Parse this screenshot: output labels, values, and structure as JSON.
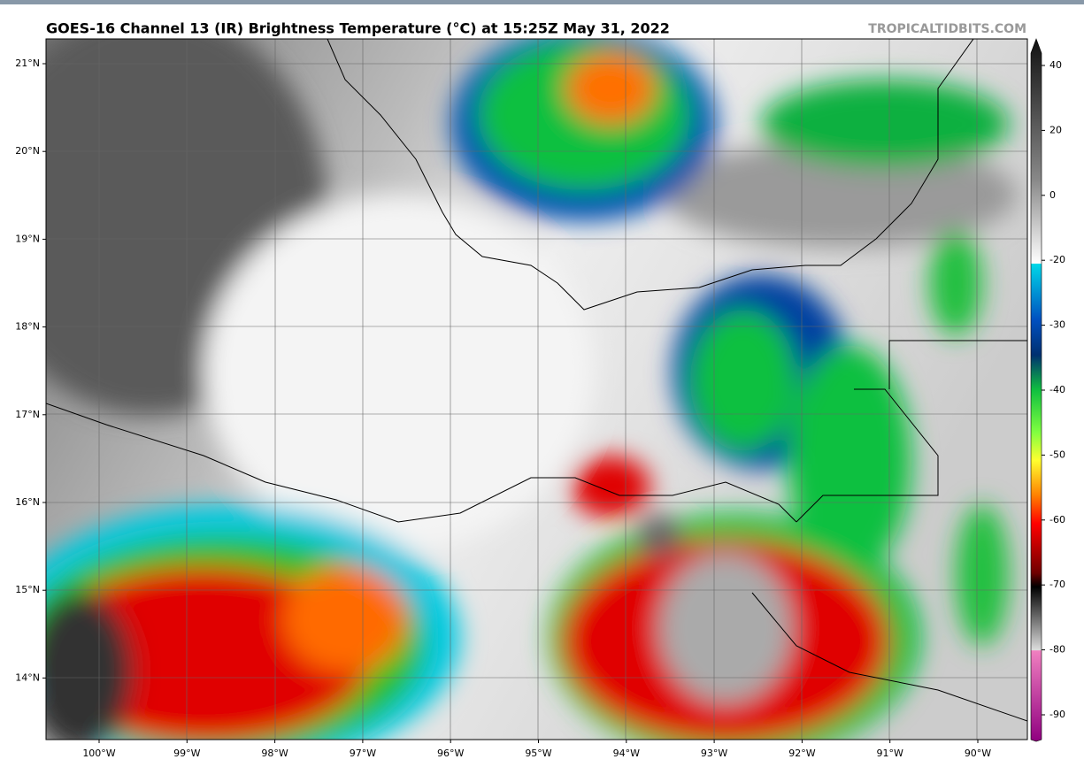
{
  "header": {
    "title": "GOES-16 Channel 13 (IR) Brightness Temperature (°C) at 15:25Z May 31, 2022",
    "credit": "TROPICALTIDBITS.COM"
  },
  "map": {
    "lat_labels": [
      "21°N",
      "20°N",
      "19°N",
      "18°N",
      "17°N",
      "16°N",
      "15°N",
      "14°N"
    ],
    "lon_labels": [
      "100°W",
      "99°W",
      "98°W",
      "97°W",
      "96°W",
      "95°W",
      "94°W",
      "93°W",
      "92°W",
      "91°W",
      "90°W"
    ]
  },
  "colorbar": {
    "ticks": [
      40,
      20,
      0,
      -20,
      -30,
      -40,
      -50,
      -60,
      -70,
      -80,
      -90
    ]
  }
}
